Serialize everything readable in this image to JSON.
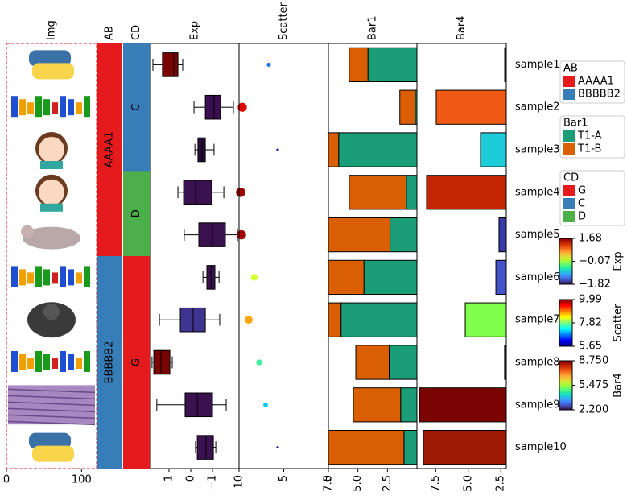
{
  "chart_data": {
    "type": "heatmap",
    "rows": [
      "sample1",
      "sample2",
      "sample3",
      "sample4",
      "sample5",
      "sample6",
      "sample7",
      "sample8",
      "sample9",
      "sample10"
    ],
    "row_label_color": "#0000cc",
    "panels": [
      {
        "type": "image",
        "title": "Img",
        "xlim": [
          0,
          120
        ],
        "xticks": [
          0,
          100
        ],
        "border_color": "#e31a1c"
      },
      {
        "type": "annotation",
        "title": "AB",
        "text_color": "#ffffff",
        "values": [
          "AAAA1",
          "AAAA1",
          "AAAA1",
          "AAAA1",
          "AAAA1",
          "BBBBB2",
          "BBBBB2",
          "BBBBB2",
          "BBBBB2",
          "BBBBB2"
        ],
        "legend": [
          {
            "name": "AAAA1",
            "color": "#e41a1c"
          },
          {
            "name": "BBBBB2",
            "color": "#377eb8"
          }
        ]
      },
      {
        "type": "annotation",
        "title": "CD",
        "text_color": "#000000",
        "values": [
          "C",
          "C",
          "C",
          "D",
          "D",
          "G",
          "G",
          "G",
          "G",
          "G"
        ],
        "legend": [
          {
            "name": "G",
            "color": "#e41a1c"
          },
          {
            "name": "C",
            "color": "#377eb8"
          },
          {
            "name": "D",
            "color": "#4daf4a"
          }
        ]
      },
      {
        "type": "box",
        "title": "Exp",
        "xlim": [
          1.85,
          -2.22
        ],
        "xticks": [
          1,
          0,
          {
            "value": -1,
            "label": "−1"
          }
        ],
        "boxes": [
          {
            "whislo": 0.37,
            "q1": 0.59,
            "med": 0.78,
            "q3": 1.3,
            "whishi": 1.74,
            "color": "#7a0403"
          },
          {
            "whislo": -1.96,
            "q1": -1.37,
            "med": -1.07,
            "q3": -0.67,
            "whishi": -0.15,
            "color": "#3b0f50"
          },
          {
            "whislo": -1.07,
            "q1": -0.67,
            "med": -0.52,
            "q3": -0.33,
            "whishi": -0.19,
            "color": "#2a0d3d"
          },
          {
            "whislo": -1.52,
            "q1": -0.96,
            "med": -0.22,
            "q3": 0.33,
            "whishi": 0.59,
            "color": "#3b1250"
          },
          {
            "whislo": -2.15,
            "q1": -1.59,
            "med": -1.0,
            "q3": -0.37,
            "whishi": 0.3,
            "color": "#3b1250"
          },
          {
            "whislo": -1.3,
            "q1": -1.11,
            "med": -0.93,
            "q3": -0.74,
            "whishi": -0.56,
            "color": "#3b1250"
          },
          {
            "whislo": -1.33,
            "q1": -0.67,
            "med": -0.11,
            "q3": 0.48,
            "whishi": 1.44,
            "color": "#3d3591"
          },
          {
            "whislo": 0.85,
            "q1": 0.96,
            "med": 1.37,
            "q3": 1.7,
            "whishi": 1.78,
            "color": "#7a0403"
          },
          {
            "whislo": -1.63,
            "q1": -1.0,
            "med": -0.3,
            "q3": 0.26,
            "whishi": 1.56,
            "color": "#3b1250"
          },
          {
            "whislo": -1.15,
            "q1": -1.04,
            "med": -0.7,
            "q3": -0.3,
            "whishi": -0.22,
            "color": "#3b1250"
          }
        ],
        "colorbar": {
          "clim": [
            -1.82,
            1.68
          ],
          "ticks": [
            1.68,
            {
              "value": -0.07,
              "label": "−0.07"
            },
            {
              "value": -1.82,
              "label": "−1.82"
            }
          ],
          "cmap": [
            "#30123b",
            "#4145ab",
            "#4675ed",
            "#39a2fc",
            "#1bcfd4",
            "#24eca6",
            "#61fc6c",
            "#a4fc3b",
            "#d1e834",
            "#f3c63a",
            "#fe9b2d",
            "#f36315",
            "#d93806",
            "#b11901",
            "#7a0402"
          ]
        }
      },
      {
        "type": "scatter",
        "title": "Scatter",
        "xlim": [
          10,
          0
        ],
        "xticks": [
          10,
          5,
          0
        ],
        "values": [
          6.67,
          9.64,
          5.68,
          9.82,
          9.73,
          8.29,
          8.92,
          7.75,
          7.03,
          5.68
        ],
        "colors": [
          "#1f6ff0",
          "#dd0000",
          "#000080",
          "#990000",
          "#a00000",
          "#d4ff3a",
          "#ffa500",
          "#40f0a0",
          "#00c8ff",
          "#000090"
        ],
        "colorbar": {
          "clim": [
            5.65,
            9.99
          ],
          "ticks": [
            9.99,
            7.82,
            5.65
          ],
          "cmap": [
            "#00007f",
            "#0000ff",
            "#007fff",
            "#00ffff",
            "#7fff7f",
            "#ffff00",
            "#ff7f00",
            "#ff0000",
            "#7f0000"
          ]
        }
      },
      {
        "type": "stacked_bar",
        "title": "Bar1",
        "xlim": [
          7.5,
          0
        ],
        "xticks": [
          {
            "value": 7.5,
            "label": "7.5"
          },
          {
            "value": 5,
            "label": "5.0"
          },
          {
            "value": 2.5,
            "label": "2.5"
          }
        ],
        "series": [
          {
            "name": "T1-A",
            "color": "#1b9e77",
            "values": [
              4.15,
              0.14,
              6.63,
              0.9,
              2.28,
              4.49,
              6.43,
              2.35,
              1.38,
              1.1
            ]
          },
          {
            "name": "T1-B",
            "color": "#d95f02",
            "values": [
              1.59,
              1.31,
              0.97,
              4.84,
              5.32,
              3.11,
              1.17,
              2.83,
              4.01,
              6.5
            ]
          }
        ]
      },
      {
        "type": "bar",
        "title": "Bar4",
        "xlim": [
          8.94,
          2.08
        ],
        "xticks": [
          {
            "value": 7.5,
            "label": "7.5"
          },
          {
            "value": 5,
            "label": "5.0"
          },
          {
            "value": 2.5,
            "label": "2.5"
          }
        ],
        "values": [
          2.2,
          7.46,
          4.06,
          8.2,
          2.64,
          2.88,
          5.23,
          2.21,
          8.75,
          8.45
        ],
        "colors": [
          "#30123b",
          "#f05a14",
          "#1ecbd8",
          "#c42503",
          "#3a3aa8",
          "#4454c8",
          "#7fff4a",
          "#30123b",
          "#7a0403",
          "#9e1a04"
        ],
        "colorbar": {
          "clim": [
            2.2,
            8.75
          ],
          "ticks": [
            {
              "value": 8.75,
              "label": "8.750"
            },
            5.475,
            {
              "value": 2.2,
              "label": "2.200"
            }
          ],
          "cmap": [
            "#30123b",
            "#4145ab",
            "#4675ed",
            "#39a2fc",
            "#1bcfd4",
            "#24eca6",
            "#61fc6c",
            "#a4fc3b",
            "#d1e834",
            "#f3c63a",
            "#fe9b2d",
            "#f36315",
            "#d93806",
            "#b11901",
            "#7a0402"
          ]
        }
      }
    ]
  }
}
